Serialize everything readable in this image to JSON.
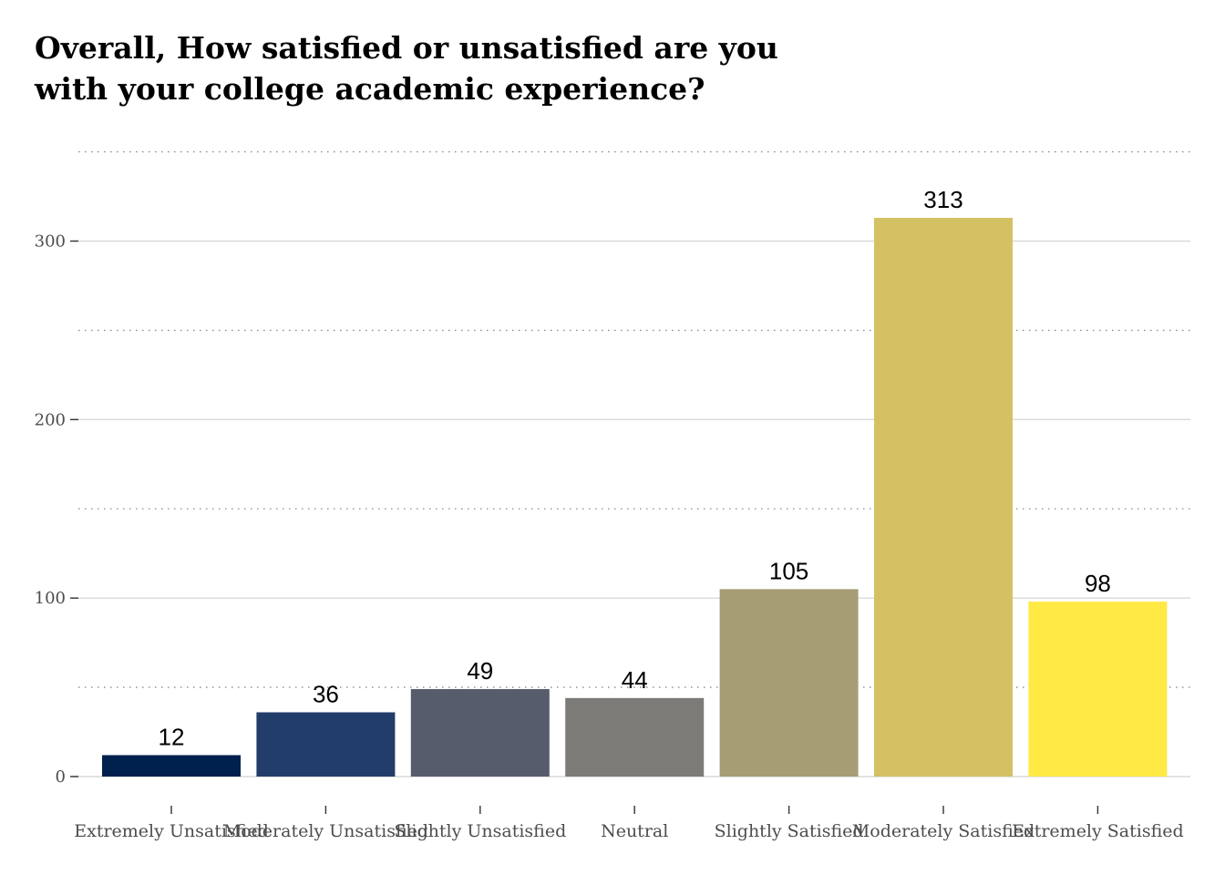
{
  "chart_data": {
    "type": "bar",
    "title_lines": [
      "Overall, How satisfied or unsatisfied are you",
      "with your college academic experience?"
    ],
    "categories": [
      "Extremely Unsatisfied",
      "Moderately Unsatisfied",
      "Slightly Unsatisfied",
      "Neutral",
      "Slightly Satisfied",
      "Moderately Satisfied",
      "Extremely Satisfied"
    ],
    "values": [
      12,
      36,
      49,
      44,
      105,
      313,
      98
    ],
    "colors": [
      "#00204d",
      "#233d6a",
      "#575c6d",
      "#7c7b78",
      "#a69d75",
      "#d3c164",
      "#ffe945"
    ],
    "ylim": [
      0,
      350
    ],
    "yticks": [
      0,
      100,
      200,
      300
    ],
    "minor_gridlines": [
      50,
      150,
      250,
      350
    ],
    "xlabel": "",
    "ylabel": "",
    "legend": "none"
  }
}
